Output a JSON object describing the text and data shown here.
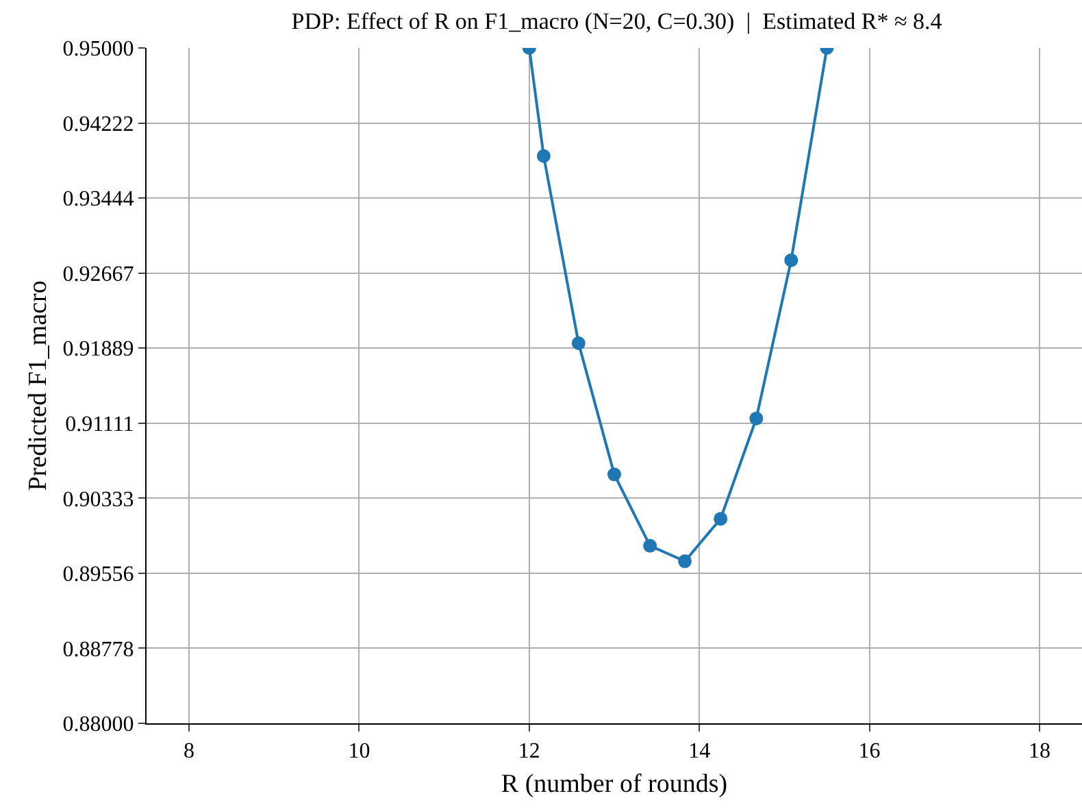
{
  "chart_data": {
    "type": "line",
    "title": "PDP: Effect of R on F1_macro (N=20, C=0.30)  |  Estimated R* ≈ 8.4",
    "xlabel": "R (number of rounds)",
    "ylabel": "Predicted F1_macro",
    "x": [
      12.0,
      12.17,
      12.58,
      13.0,
      13.42,
      13.83,
      14.25,
      14.67,
      15.08,
      15.5
    ],
    "series": [
      {
        "color": "#1f77b4",
        "values": [
          0.95,
          0.9388,
          0.9194,
          0.9058,
          0.8984,
          0.8968,
          0.9012,
          0.9116,
          0.928,
          0.95
        ]
      }
    ],
    "xlim": [
      7.5,
      18.5
    ],
    "xticks": [
      8,
      10,
      12,
      14,
      16,
      18
    ],
    "ylim": [
      0.88,
      0.95
    ],
    "yticks": [
      {
        "value": 0.88,
        "label": "0.88000"
      },
      {
        "value": 0.88778,
        "label": "0.88778"
      },
      {
        "value": 0.89556,
        "label": "0.89556"
      },
      {
        "value": 0.90333,
        "label": "0.90333"
      },
      {
        "value": 0.91111,
        "label": "0.91111"
      },
      {
        "value": 0.91889,
        "label": "0.91889"
      },
      {
        "value": 0.92667,
        "label": "0.92667"
      },
      {
        "value": 0.93444,
        "label": "0.93444"
      },
      {
        "value": 0.94222,
        "label": "0.94222"
      },
      {
        "value": 0.95,
        "label": "0.95000"
      }
    ],
    "grid": true,
    "marker": "circle",
    "line_style": "solid"
  }
}
